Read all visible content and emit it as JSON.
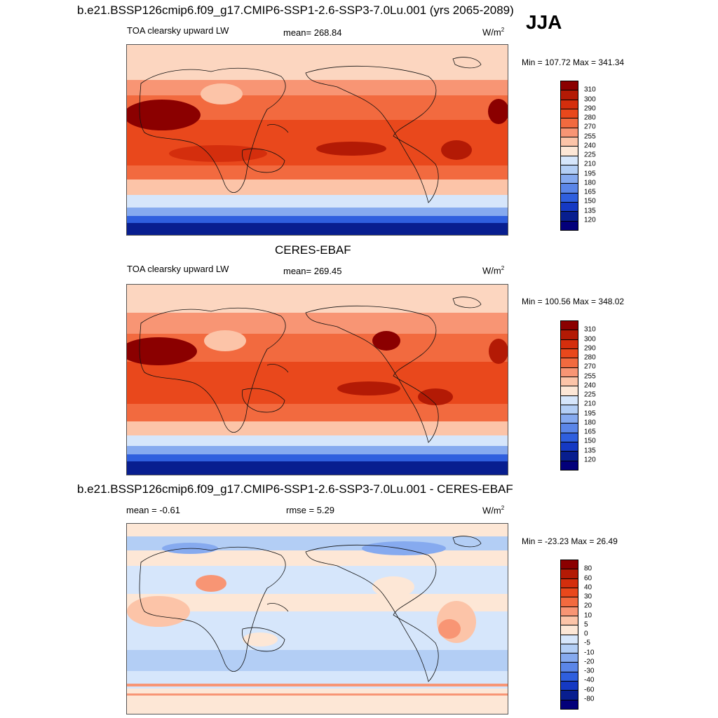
{
  "figure": {
    "top_title": "b.e21.BSSP126cmip6.f09_g17.CMIP6-SSP1-2.6-SSP3-7.0Lu.001 (yrs 2065-2089)",
    "season": "JJA",
    "units": "W/m",
    "units_exp": "2"
  },
  "panels": [
    {
      "variable": "TOA clearsky upward LW",
      "mean_label": "mean= 268.84",
      "minmax": "Min = 107.72 Max = 341.34",
      "colorbar": [
        "310",
        "300",
        "290",
        "280",
        "270",
        "255",
        "240",
        "225",
        "210",
        "195",
        "180",
        "165",
        "150",
        "135",
        "120"
      ]
    },
    {
      "heading": "CERES-EBAF",
      "variable": "TOA clearsky upward LW",
      "mean_label": "mean= 269.45",
      "minmax": "Min = 100.56 Max = 348.02",
      "colorbar": [
        "310",
        "300",
        "290",
        "280",
        "270",
        "255",
        "240",
        "225",
        "210",
        "195",
        "180",
        "165",
        "150",
        "135",
        "120"
      ]
    },
    {
      "heading": "b.e21.BSSP126cmip6.f09_g17.CMIP6-SSP1-2.6-SSP3-7.0Lu.001 - CERES-EBAF",
      "mean_label": "mean =  -0.61",
      "rmse_label": "rmse =   5.29",
      "minmax": "Min = -23.23 Max =  26.49",
      "colorbar": [
        "80",
        "60",
        "40",
        "30",
        "20",
        "10",
        "5",
        "0",
        "-5",
        "-10",
        "-20",
        "-30",
        "-40",
        "-60",
        "-80"
      ]
    }
  ],
  "colors": {
    "scale": [
      "#8b0000",
      "#b31a05",
      "#d42e0d",
      "#e9481c",
      "#f26a3f",
      "#f89574",
      "#fcc4a8",
      "#fde7d6",
      "#d6e6fb",
      "#b3cef5",
      "#86aaef",
      "#5b86e8",
      "#2f5fde",
      "#1539c3",
      "#081e8f",
      "#03007a"
    ]
  }
}
